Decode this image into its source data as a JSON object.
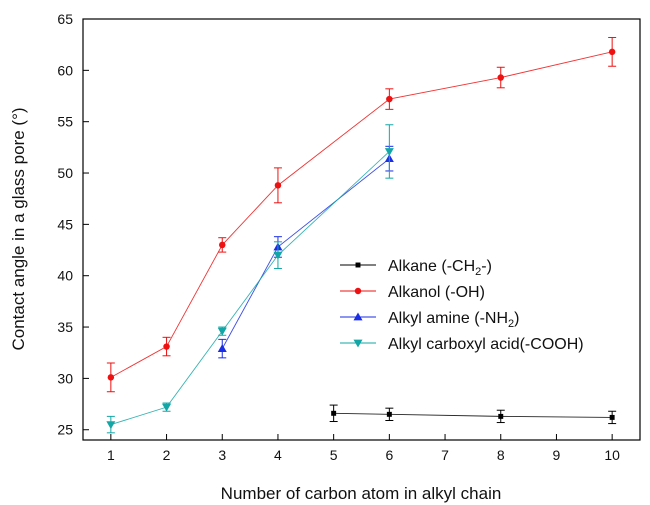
{
  "chart_data": {
    "type": "line",
    "xlabel": "Number of carbon atom in alkyl chain",
    "ylabel": "Contact angle in a glass pore (°)",
    "xlim": [
      0.5,
      10.5
    ],
    "ylim": [
      24,
      65
    ],
    "xticks": [
      "1",
      "2",
      "3",
      "4",
      "5",
      "6",
      "7",
      "8",
      "9",
      "10"
    ],
    "yticks": [
      "25",
      "30",
      "35",
      "40",
      "45",
      "50",
      "55",
      "60",
      "65"
    ],
    "grid": false,
    "legend_position": "center-right",
    "series": [
      {
        "name": "Alkane (-CH",
        "name_sub": "2",
        "name_tail": "-)",
        "color": "#000000",
        "marker": "square",
        "points": [
          {
            "x": 5,
            "y": 26.6,
            "err": 0.8
          },
          {
            "x": 6,
            "y": 26.5,
            "err": 0.6
          },
          {
            "x": 8,
            "y": 26.3,
            "err": 0.6
          },
          {
            "x": 10,
            "y": 26.2,
            "err": 0.6
          }
        ]
      },
      {
        "name": "Alkanol (-OH)",
        "name_sub": "",
        "name_tail": "",
        "color": "#ee1111",
        "marker": "circle",
        "points": [
          {
            "x": 1,
            "y": 30.1,
            "err": 1.4
          },
          {
            "x": 2,
            "y": 33.1,
            "err": 0.9
          },
          {
            "x": 3,
            "y": 43.0,
            "err": 0.7
          },
          {
            "x": 4,
            "y": 48.8,
            "err": 1.7
          },
          {
            "x": 6,
            "y": 57.2,
            "err": 1.0
          },
          {
            "x": 8,
            "y": 59.3,
            "err": 1.0
          },
          {
            "x": 10,
            "y": 61.8,
            "err": 1.4
          }
        ]
      },
      {
        "name": "Alkyl amine (-NH",
        "name_sub": "2",
        "name_tail": ")",
        "color": "#1a2ee6",
        "marker": "triangle-up",
        "points": [
          {
            "x": 3,
            "y": 32.9,
            "err": 0.9
          },
          {
            "x": 4,
            "y": 42.8,
            "err": 1.0
          },
          {
            "x": 6,
            "y": 51.4,
            "err": 1.2
          }
        ]
      },
      {
        "name": "Alkyl carboxyl acid(-COOH)",
        "name_sub": "",
        "name_tail": "",
        "color": "#12a6a6",
        "marker": "triangle-down",
        "points": [
          {
            "x": 1,
            "y": 25.5,
            "err": 0.8
          },
          {
            "x": 2,
            "y": 27.2,
            "err": 0.4
          },
          {
            "x": 3,
            "y": 34.6,
            "err": 0.4
          },
          {
            "x": 4,
            "y": 42.0,
            "err": 1.3
          },
          {
            "x": 6,
            "y": 52.1,
            "err": 2.6
          }
        ]
      }
    ]
  }
}
